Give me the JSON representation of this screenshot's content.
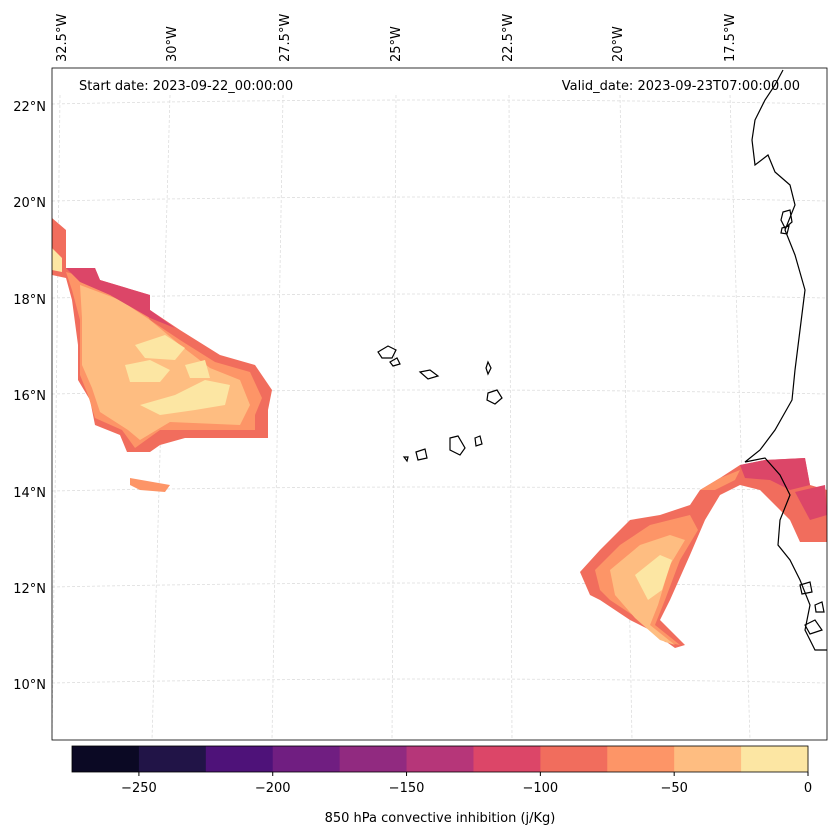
{
  "header": {
    "start_date": "Start date: 2023-09-22_00:00:00",
    "valid_date": "Valid_date: 2023-09-23T07:00:00.00"
  },
  "map": {
    "longitude_labels": [
      "32.5°W",
      "30°W",
      "27.5°W",
      "25°W",
      "22.5°W",
      "20°W",
      "17.5°W"
    ],
    "latitude_labels": [
      "22°N",
      "20°N",
      "18°N",
      "16°N",
      "14°N",
      "12°N",
      "10°N"
    ],
    "grid_color": "#dddddd",
    "coast_color": "#000000"
  },
  "colorbar": {
    "label": "850 hPa convective inhibition (j/Kg)",
    "tick_labels": [
      "−250",
      "−200",
      "−150",
      "−100",
      "−50",
      "0"
    ],
    "levels": [
      -275,
      -250,
      -225,
      -200,
      -175,
      -150,
      -125,
      -100,
      -75,
      -50,
      -25,
      0
    ],
    "colors": [
      "#0b0924",
      "#211447",
      "#4e1279",
      "#701e81",
      "#912a80",
      "#b63679",
      "#dc4668",
      "#f16d5d",
      "#fd9567",
      "#febd81",
      "#fce6a3"
    ]
  }
}
